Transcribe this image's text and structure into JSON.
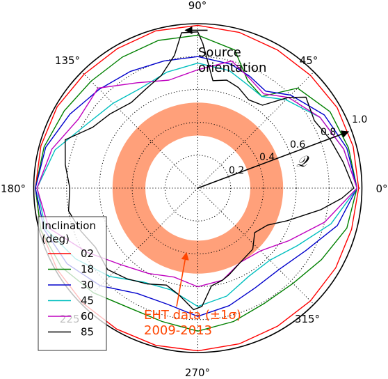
{
  "chart_data": {
    "type": "line",
    "projection": "polar",
    "theta_unit": "deg",
    "radial_max": 1.0,
    "radial_ticks": [
      0.2,
      0.4,
      0.6,
      0.8,
      1.0
    ],
    "radial_tick_labels": [
      "0.2",
      "0.4",
      "0.6",
      "0.8",
      "1.0"
    ],
    "angle_ticks": [
      0,
      45,
      90,
      135,
      180,
      225,
      270,
      315
    ],
    "angle_tick_labels": [
      "0°",
      "45°",
      "90°",
      "135°",
      "180°",
      "225°",
      "270°",
      "315°"
    ],
    "grid": true,
    "legend": {
      "title": "Inclination\n(deg)",
      "placement": "lower-left"
    },
    "series": [
      {
        "name": "02",
        "color": "#ff0000",
        "points": [
          [
            0,
            0.98
          ],
          [
            15,
            0.98
          ],
          [
            30,
            0.98
          ],
          [
            45,
            0.97
          ],
          [
            60,
            0.97
          ],
          [
            75,
            0.98
          ],
          [
            90,
            0.99
          ],
          [
            105,
            0.99
          ],
          [
            120,
            0.98
          ],
          [
            135,
            0.98
          ],
          [
            150,
            0.99
          ],
          [
            165,
            0.99
          ],
          [
            180,
            0.99
          ],
          [
            195,
            0.99
          ],
          [
            210,
            0.99
          ],
          [
            225,
            0.99
          ],
          [
            240,
            0.99
          ],
          [
            255,
            0.99
          ],
          [
            270,
            0.99
          ],
          [
            285,
            0.98
          ],
          [
            300,
            0.97
          ],
          [
            315,
            0.97
          ],
          [
            330,
            0.97
          ],
          [
            345,
            0.97
          ],
          [
            360,
            0.98
          ]
        ]
      },
      {
        "name": "18",
        "color": "#008000",
        "points": [
          [
            0,
            0.97
          ],
          [
            15,
            0.95
          ],
          [
            30,
            0.93
          ],
          [
            45,
            0.86
          ],
          [
            55,
            0.68
          ],
          [
            65,
            0.72
          ],
          [
            75,
            0.87
          ],
          [
            90,
            0.93
          ],
          [
            105,
            0.93
          ],
          [
            120,
            0.92
          ],
          [
            135,
            0.92
          ],
          [
            150,
            0.94
          ],
          [
            165,
            0.97
          ],
          [
            180,
            0.99
          ],
          [
            195,
            0.99
          ],
          [
            210,
            0.96
          ],
          [
            225,
            0.9
          ],
          [
            240,
            0.84
          ],
          [
            255,
            0.84
          ],
          [
            270,
            0.87
          ],
          [
            285,
            0.84
          ],
          [
            300,
            0.81
          ],
          [
            315,
            0.82
          ],
          [
            330,
            0.87
          ],
          [
            345,
            0.94
          ],
          [
            360,
            0.97
          ]
        ]
      },
      {
        "name": "30",
        "color": "#0000cc",
        "points": [
          [
            0,
            0.97
          ],
          [
            15,
            0.94
          ],
          [
            30,
            0.89
          ],
          [
            45,
            0.8
          ],
          [
            55,
            0.72
          ],
          [
            65,
            0.75
          ],
          [
            75,
            0.78
          ],
          [
            90,
            0.8
          ],
          [
            105,
            0.8
          ],
          [
            120,
            0.82
          ],
          [
            135,
            0.85
          ],
          [
            150,
            0.9
          ],
          [
            165,
            0.96
          ],
          [
            180,
            0.99
          ],
          [
            195,
            0.97
          ],
          [
            210,
            0.92
          ],
          [
            225,
            0.84
          ],
          [
            240,
            0.74
          ],
          [
            255,
            0.73
          ],
          [
            270,
            0.78
          ],
          [
            285,
            0.74
          ],
          [
            300,
            0.7
          ],
          [
            315,
            0.7
          ],
          [
            330,
            0.76
          ],
          [
            345,
            0.88
          ],
          [
            360,
            0.97
          ]
        ]
      },
      {
        "name": "45",
        "color": "#00bfbf",
        "points": [
          [
            0,
            0.97
          ],
          [
            15,
            0.92
          ],
          [
            30,
            0.86
          ],
          [
            45,
            0.76
          ],
          [
            55,
            0.68
          ],
          [
            65,
            0.7
          ],
          [
            75,
            0.74
          ],
          [
            90,
            0.76
          ],
          [
            105,
            0.73
          ],
          [
            120,
            0.7
          ],
          [
            135,
            0.73
          ],
          [
            150,
            0.78
          ],
          [
            165,
            0.9
          ],
          [
            180,
            0.98
          ],
          [
            195,
            0.96
          ],
          [
            210,
            0.86
          ],
          [
            225,
            0.76
          ],
          [
            240,
            0.66
          ],
          [
            255,
            0.64
          ],
          [
            270,
            0.72
          ],
          [
            285,
            0.68
          ],
          [
            300,
            0.62
          ],
          [
            315,
            0.62
          ],
          [
            330,
            0.7
          ],
          [
            345,
            0.84
          ],
          [
            360,
            0.97
          ]
        ]
      },
      {
        "name": "60",
        "color": "#bf00bf",
        "points": [
          [
            0,
            0.97
          ],
          [
            15,
            0.92
          ],
          [
            30,
            0.86
          ],
          [
            45,
            0.78
          ],
          [
            55,
            0.7
          ],
          [
            65,
            0.74
          ],
          [
            75,
            0.8
          ],
          [
            90,
            0.72
          ],
          [
            105,
            0.68
          ],
          [
            120,
            0.74
          ],
          [
            135,
            0.86
          ],
          [
            150,
            0.84
          ],
          [
            165,
            0.92
          ],
          [
            180,
            0.98
          ],
          [
            195,
            0.94
          ],
          [
            210,
            0.78
          ],
          [
            225,
            0.66
          ],
          [
            240,
            0.6
          ],
          [
            255,
            0.56
          ],
          [
            270,
            0.6
          ],
          [
            285,
            0.58
          ],
          [
            300,
            0.52
          ],
          [
            315,
            0.54
          ],
          [
            330,
            0.64
          ],
          [
            345,
            0.8
          ],
          [
            360,
            0.97
          ]
        ]
      },
      {
        "name": "85",
        "color": "#000000",
        "points": [
          [
            0,
            0.95
          ],
          [
            10,
            0.9
          ],
          [
            20,
            0.86
          ],
          [
            30,
            0.82
          ],
          [
            40,
            0.86
          ],
          [
            45,
            0.78
          ],
          [
            52,
            0.64
          ],
          [
            60,
            0.62
          ],
          [
            68,
            0.66
          ],
          [
            75,
            0.68
          ],
          [
            82,
            0.66
          ],
          [
            88,
            0.88
          ],
          [
            90,
            0.95
          ],
          [
            96,
            0.95
          ],
          [
            100,
            0.82
          ],
          [
            108,
            0.72
          ],
          [
            118,
            0.68
          ],
          [
            128,
            0.66
          ],
          [
            140,
            0.7
          ],
          [
            150,
            0.74
          ],
          [
            160,
            0.86
          ],
          [
            170,
            0.82
          ],
          [
            180,
            0.78
          ],
          [
            190,
            0.8
          ],
          [
            200,
            0.76
          ],
          [
            210,
            0.72
          ],
          [
            222,
            0.74
          ],
          [
            232,
            0.7
          ],
          [
            242,
            0.66
          ],
          [
            252,
            0.62
          ],
          [
            260,
            0.66
          ],
          [
            268,
            0.74
          ],
          [
            272,
            0.72
          ],
          [
            278,
            0.6
          ],
          [
            285,
            0.58
          ],
          [
            290,
            0.56
          ],
          [
            300,
            0.52
          ],
          [
            312,
            0.5
          ],
          [
            322,
            0.44
          ],
          [
            332,
            0.48
          ],
          [
            340,
            0.58
          ],
          [
            350,
            0.76
          ],
          [
            356,
            0.88
          ],
          [
            360,
            0.95
          ]
        ]
      }
    ],
    "shaded_band": {
      "r_inner": 0.32,
      "r_outer": 0.52,
      "color": "#ffa07a"
    },
    "annotations": [
      {
        "id": "source_orientation",
        "text": "Source\norientation",
        "arrow_theta": 90,
        "arrow_r": 0.96
      },
      {
        "id": "q_label",
        "text": "𝒬",
        "arrow_theta": 20.5,
        "arrow_r": 0.98
      },
      {
        "id": "eht_label",
        "text": "EHT data (±1σ)\n2009-2013",
        "color": "#ff4500"
      }
    ]
  }
}
